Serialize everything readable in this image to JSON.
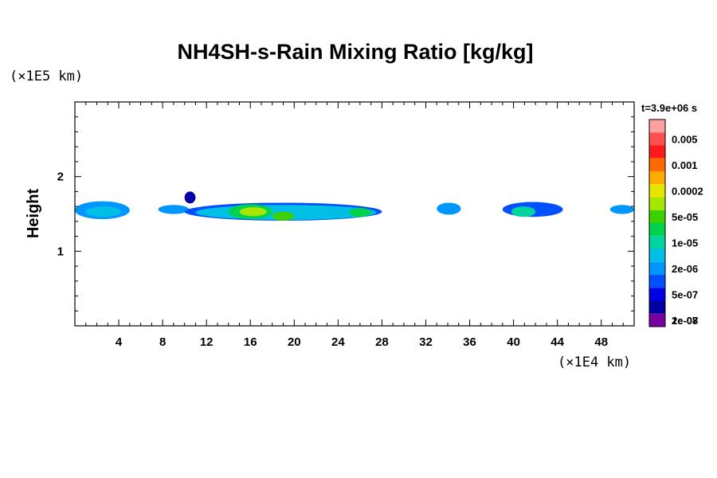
{
  "chart_data": {
    "type": "heatmap",
    "title": "NH4SH-s-Rain Mixing Ratio [kg/kg]",
    "xlabel": "",
    "ylabel": "Height",
    "x_unit": "(×1E4 km)",
    "y_unit": "(×1E5 km)",
    "time_label": "t=3.9e+06 s",
    "xlim": [
      0,
      51
    ],
    "ylim": [
      0,
      3
    ],
    "x_ticks": [
      4,
      8,
      12,
      16,
      20,
      24,
      28,
      32,
      36,
      40,
      44,
      48
    ],
    "y_ticks": [
      1,
      2
    ],
    "legend": {
      "placement": "right",
      "labels": [
        "0.005",
        "0.001",
        "0.0002",
        "5e-05",
        "1e-05",
        "2e-06",
        "5e-07",
        "1e-07",
        "2e-08"
      ],
      "colors": [
        "#ffa0a0",
        "#ff5050",
        "#ff1a1a",
        "#ff6a00",
        "#ffaa00",
        "#e6e600",
        "#a6e600",
        "#3cd200",
        "#00d250",
        "#00d2a0",
        "#00bee6",
        "#0096ff",
        "#0050ff",
        "#0000e6",
        "#0000a0",
        "#7800a0"
      ]
    },
    "regions": [
      {
        "x0": 0.0,
        "x1": 5.0,
        "ymid": 1.55,
        "half": 0.12,
        "level": 11
      },
      {
        "x0": 1.0,
        "x1": 4.2,
        "ymid": 1.53,
        "half": 0.07,
        "level": 10
      },
      {
        "x0": 7.6,
        "x1": 10.4,
        "ymid": 1.56,
        "half": 0.06,
        "level": 11
      },
      {
        "x0": 10.0,
        "x1": 11.0,
        "ymid": 1.72,
        "half": 0.08,
        "level": 14
      },
      {
        "x0": 10.0,
        "x1": 28.0,
        "ymid": 1.53,
        "half": 0.12,
        "level": 12
      },
      {
        "x0": 11.0,
        "x1": 27.5,
        "ymid": 1.52,
        "half": 0.1,
        "level": 10
      },
      {
        "x0": 14.0,
        "x1": 18.0,
        "ymid": 1.53,
        "half": 0.1,
        "level": 8
      },
      {
        "x0": 15.0,
        "x1": 17.5,
        "ymid": 1.53,
        "half": 0.06,
        "level": 6
      },
      {
        "x0": 18.0,
        "x1": 20.0,
        "ymid": 1.47,
        "half": 0.06,
        "level": 7
      },
      {
        "x0": 25.0,
        "x1": 27.0,
        "ymid": 1.52,
        "half": 0.06,
        "level": 8
      },
      {
        "x0": 33.0,
        "x1": 35.2,
        "ymid": 1.57,
        "half": 0.08,
        "level": 11
      },
      {
        "x0": 39.0,
        "x1": 44.5,
        "ymid": 1.56,
        "half": 0.1,
        "level": 12
      },
      {
        "x0": 39.8,
        "x1": 42.0,
        "ymid": 1.53,
        "half": 0.07,
        "level": 9
      },
      {
        "x0": 48.8,
        "x1": 51.0,
        "ymid": 1.56,
        "half": 0.06,
        "level": 11
      }
    ]
  }
}
